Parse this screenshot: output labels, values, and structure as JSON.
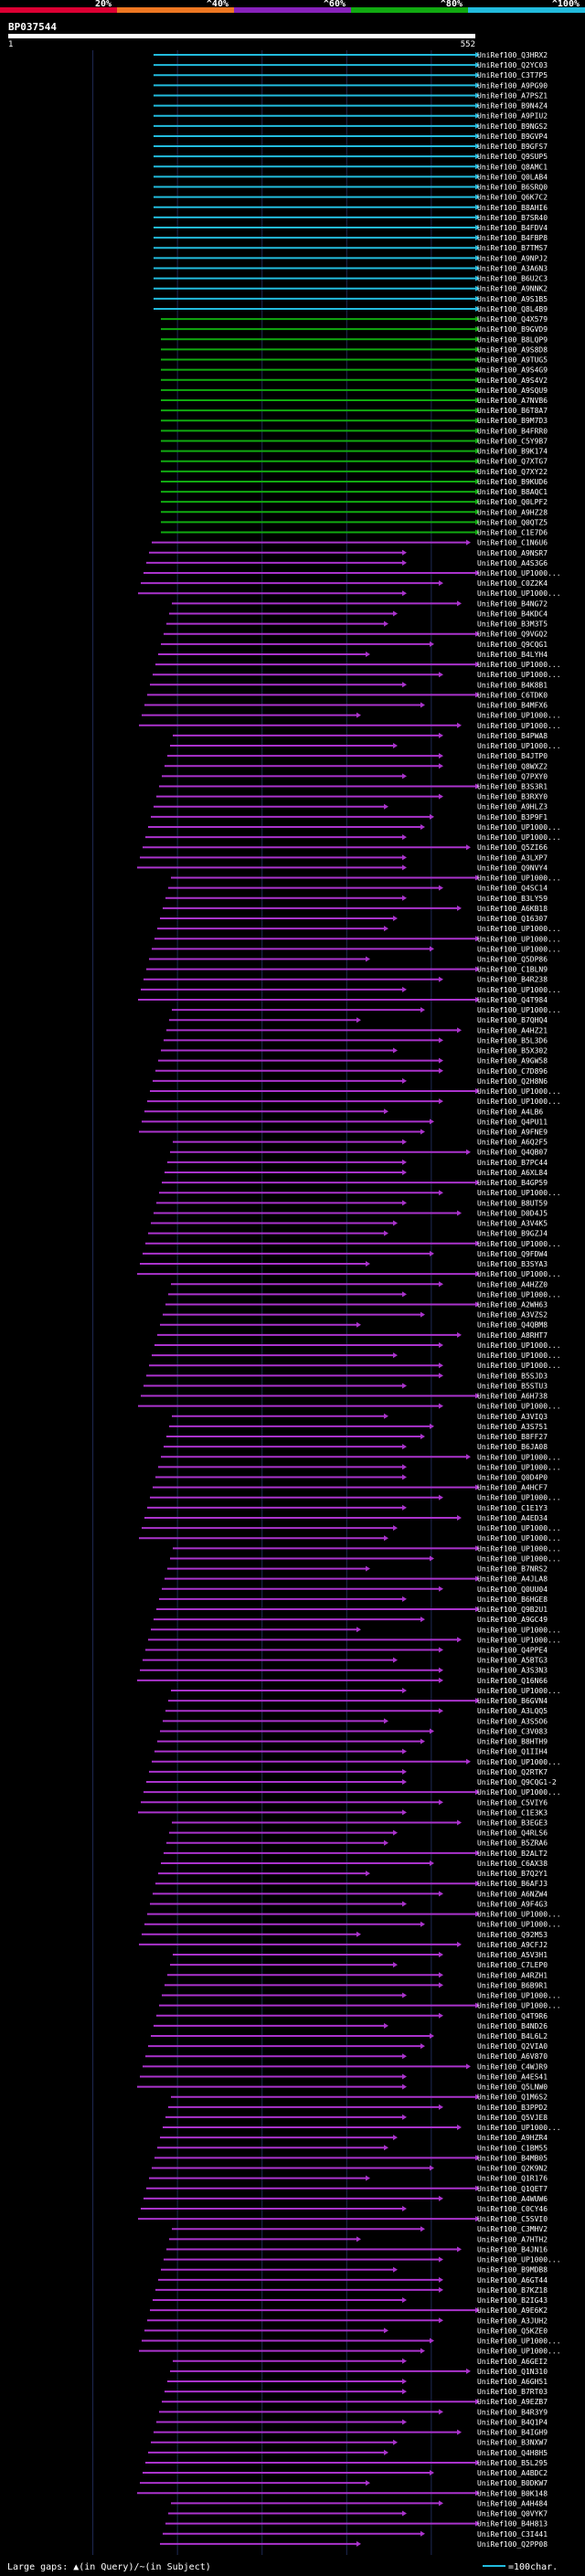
{
  "chart_data": {
    "type": "alignment-overview",
    "query_id": "BP037544",
    "query_length": 552,
    "query_start_label": "1",
    "query_end_label": "552",
    "identity_scale": [
      {
        "label": "20%",
        "color": "#dd0033"
      },
      {
        "label": "^40%",
        "color": "#ee7722"
      },
      {
        "label": "^60%",
        "color": "#8822bb"
      },
      {
        "label": "^80%",
        "color": "#11aa11"
      },
      {
        "label": "^100%",
        "color": "#22bbdd"
      }
    ],
    "hits": [
      "UniRef100_Q3HRX2",
      "UniRef100_Q2YC03",
      "UniRef100_C3T7P5",
      "UniRef100_A9PG90",
      "UniRef100_A7PSZ1",
      "UniRef100_B9N4Z4",
      "UniRef100_A9PIU2",
      "UniRef100_B9NGS2",
      "UniRef100_B9GVP4",
      "UniRef100_B9GFS7",
      "UniRef100_Q9SUP5",
      "UniRef100_Q8AMC1",
      "UniRef100_Q0LAB4",
      "UniRef100_B6SRQ0",
      "UniRef100_Q6K7C2",
      "UniRef100_B8AHI6",
      "UniRef100_B7SR40",
      "UniRef100_B4FDV4",
      "UniRef100_B4FBP8",
      "UniRef100_B7TMS7",
      "UniRef100_A9NPJ2",
      "UniRef100_A3A6N3",
      "UniRef100_B6U2C3",
      "UniRef100_A9NNK2",
      "UniRef100_A9S1B5",
      "UniRef100_Q8L4B9",
      "UniRef100_Q4X579",
      "UniRef100_B9GVD9",
      "UniRef100_B8LQP9",
      "UniRef100_A9S8D8",
      "UniRef100_A9TUG5",
      "UniRef100_A9S4G9",
      "UniRef100_A9S4V2",
      "UniRef100_A9SQU9",
      "UniRef100_A7NVB6",
      "UniRef100_B6T8A7",
      "UniRef100_B9M7D3",
      "UniRef100_B4FRR0",
      "UniRef100_C5Y9B7",
      "UniRef100_B9K174",
      "UniRef100_Q7XTG7",
      "UniRef100_Q7XY22",
      "UniRef100_B9KUD6",
      "UniRef100_B8AQC1",
      "UniRef100_Q0LPF2",
      "UniRef100_A9HZ28",
      "UniRef100_Q0QTZ5",
      "UniRef100_C1E7D6",
      "UniRef100_C1N6U6",
      "UniRef100_A9NSR7",
      "UniRef100_A4S3G6",
      "UniRef100_UP1000...",
      "UniRef100_C0Z2K4",
      "UniRef100_UP1000...",
      "UniRef100_B4NG72",
      "UniRef100_B4KDC4",
      "UniRef100_B3M3T5",
      "UniRef100_Q9VGQ2",
      "UniRef100_Q9CQG1",
      "UniRef100_B4LYH4",
      "UniRef100_UP1000...",
      "UniRef100_UP1000...",
      "UniRef100_B4K8B1",
      "UniRef100_C6TDK0",
      "UniRef100_B4MFX6",
      "UniRef100_UP1000...",
      "UniRef100_UP1000...",
      "UniRef100_B4PWA8",
      "UniRef100_UP1000...",
      "UniRef100_B4JTP0",
      "UniRef100_Q8WXZ2",
      "UniRef100_Q7PXY0",
      "UniRef100_B3S3R1",
      "UniRef100_B3RXY0",
      "UniRef100_A9HLZ3",
      "UniRef100_B3P9F1",
      "UniRef100_UP1000...",
      "UniRef100_UP1000...",
      "UniRef100_Q5ZI66",
      "UniRef100_A3LXP7",
      "UniRef100_Q9NVY4",
      "UniRef100_UP1000...",
      "UniRef100_Q4SC14",
      "UniRef100_B3LY59",
      "UniRef100_A6KB18",
      "UniRef100_Q16307",
      "UniRef100_UP1000...",
      "UniRef100_UP1000...",
      "UniRef100_UP1000...",
      "UniRef100_Q5DP86",
      "UniRef100_C1BLN9",
      "UniRef100_B4R238",
      "UniRef100_UP1000...",
      "UniRef100_Q4T984",
      "UniRef100_UP1000...",
      "UniRef100_B7QHQ4",
      "UniRef100_A4HZ21",
      "UniRef100_B5L3D6",
      "UniRef100_B5X302",
      "UniRef100_A9GW58",
      "UniRef100_C7D896",
      "UniRef100_Q2H8N6",
      "UniRef100_UP1000...",
      "UniRef100_UP1000...",
      "UniRef100_A4LB6",
      "UniRef100_Q4PU11",
      "UniRef100_A9FNE9",
      "UniRef100_A6Q2F5",
      "UniRef100_Q4QB07",
      "UniRef100_B7PC44",
      "UniRef100_A6XL84",
      "UniRef100_B4GP59",
      "UniRef100_UP1000...",
      "UniRef100_B8UT59",
      "UniRef100_D0D4J5",
      "UniRef100_A3V4K5",
      "UniRef100_B9GZJ4",
      "UniRef100_UP1000...",
      "UniRef100_Q9FDW4",
      "UniRef100_B3SYA3",
      "UniRef100_UP1000...",
      "UniRef100_A4HZZ0",
      "UniRef100_UP1000...",
      "UniRef100_A2WH63",
      "UniRef100_A3VZS2",
      "UniRef100_Q4QBM8",
      "UniRef100_A8RHT7",
      "UniRef100_UP1000...",
      "UniRef100_UP1000...",
      "UniRef100_UP1000...",
      "UniRef100_B5SJD3",
      "UniRef100_B5STU3",
      "UniRef100_A6H738",
      "UniRef100_UP1000...",
      "UniRef100_A3VIQ3",
      "UniRef100_A3S751",
      "UniRef100_B8FF27",
      "UniRef100_B6JA08",
      "UniRef100_UP1000...",
      "UniRef100_UP1000...",
      "UniRef100_Q0D4P0",
      "UniRef100_A4HCF7",
      "UniRef100_UP1000...",
      "UniRef100_C1E1Y3",
      "UniRef100_A4ED34",
      "UniRef100_UP1000...",
      "UniRef100_UP1000...",
      "UniRef100_UP1000...",
      "UniRef100_UP1000...",
      "UniRef100_B7NRS2",
      "UniRef100_A4JLA8",
      "UniRef100_Q0UU04",
      "UniRef100_B6HGE8",
      "UniRef100_Q9B2U1",
      "UniRef100_A9GC49",
      "UniRef100_UP1000...",
      "UniRef100_UP1000...",
      "UniRef100_Q4PPE4",
      "UniRef100_A5BTG3",
      "UniRef100_A3S3N3",
      "UniRef100_Q16N66",
      "UniRef100_UP1000...",
      "UniRef100_B6GVN4",
      "UniRef100_A3LQQ5",
      "UniRef100_A3S5O6",
      "UniRef100_C3V083",
      "UniRef100_B8HTH9",
      "UniRef100_Q1IIH4",
      "UniRef100_UP1000...",
      "UniRef100_Q2RTK7",
      "UniRef100_Q9CQG1-2",
      "UniRef100_UP1000...",
      "UniRef100_C5VIY6",
      "UniRef100_C1E3K3",
      "UniRef100_B3EGE3",
      "UniRef100_Q4RLS6",
      "UniRef100_B5ZRA6",
      "UniRef100_B2ALT2",
      "UniRef100_C6AX38",
      "UniRef100_B7Q2Y1",
      "UniRef100_B6AFJ3",
      "UniRef100_A6NZW4",
      "UniRef100_A9F4G3",
      "UniRef100_UP1000...",
      "UniRef100_UP1000...",
      "UniRef100_Q92M53",
      "UniRef100_A9CFJ2",
      "UniRef100_A5V3H1",
      "UniRef100_C7LEP0",
      "UniRef100_A4RZH1",
      "UniRef100_B6B9R1",
      "UniRef100_UP1000...",
      "UniRef100_UP1000...",
      "UniRef100_Q4T9R6",
      "UniRef100_B4ND26",
      "UniRef100_B4L6L2",
      "UniRef100_Q2VIA0",
      "UniRef100_A6V870",
      "UniRef100_C4WJR9",
      "UniRef100_A4ES41",
      "UniRef100_Q5LNW0",
      "UniRef100_Q1M6S2",
      "UniRef100_B3PPD2",
      "UniRef100_Q5VJE8",
      "UniRef100_UP1000...",
      "UniRef100_A9HZR4",
      "UniRef100_C1BM55",
      "UniRef100_B4MB05",
      "UniRef100_Q2K9N2",
      "UniRef100_Q1R176",
      "UniRef100_Q1QET7",
      "UniRef100_A4WUW6",
      "UniRef100_C0CY46",
      "UniRef100_C5SVI0",
      "UniRef100_C3MHV2",
      "UniRef100_A7HTH2",
      "UniRef100_B4JN16",
      "UniRef100_UP1000...",
      "UniRef100_B9MDB8",
      "UniRef100_A6GT44",
      "UniRef100_B7KZ18",
      "UniRef100_B2IG43",
      "UniRef100_A9E6K2",
      "UniRef100_A3JUH2",
      "UniRef100_Q5KZE0",
      "UniRef100_UP1000...",
      "UniRef100_UP1000...",
      "UniRef100_A6GEI2",
      "UniRef100_Q1N310",
      "UniRef100_A6GH51",
      "UniRef100_B7RT03",
      "UniRef100_A9EZB7",
      "UniRef100_B4R3Y9",
      "UniRef100_B4Q1P4",
      "UniRef100_B4IGH9",
      "UniRef100_B3NXW7",
      "UniRef100_Q4H8H5",
      "UniRef100_B5L295",
      "UniRef100_A4BDC2",
      "UniRef100_B0DKW7",
      "UniRef100_B0K148",
      "UniRef100_A4H484",
      "UniRef100_Q0VYK7",
      "UniRef100_B4H813",
      "UniRef100_C3I441",
      "UniRef100_Q2PP08"
    ],
    "legend_text": "Large gaps: ▲(in Query)/~(in Subject)",
    "legend_scale_label": "=100char."
  }
}
